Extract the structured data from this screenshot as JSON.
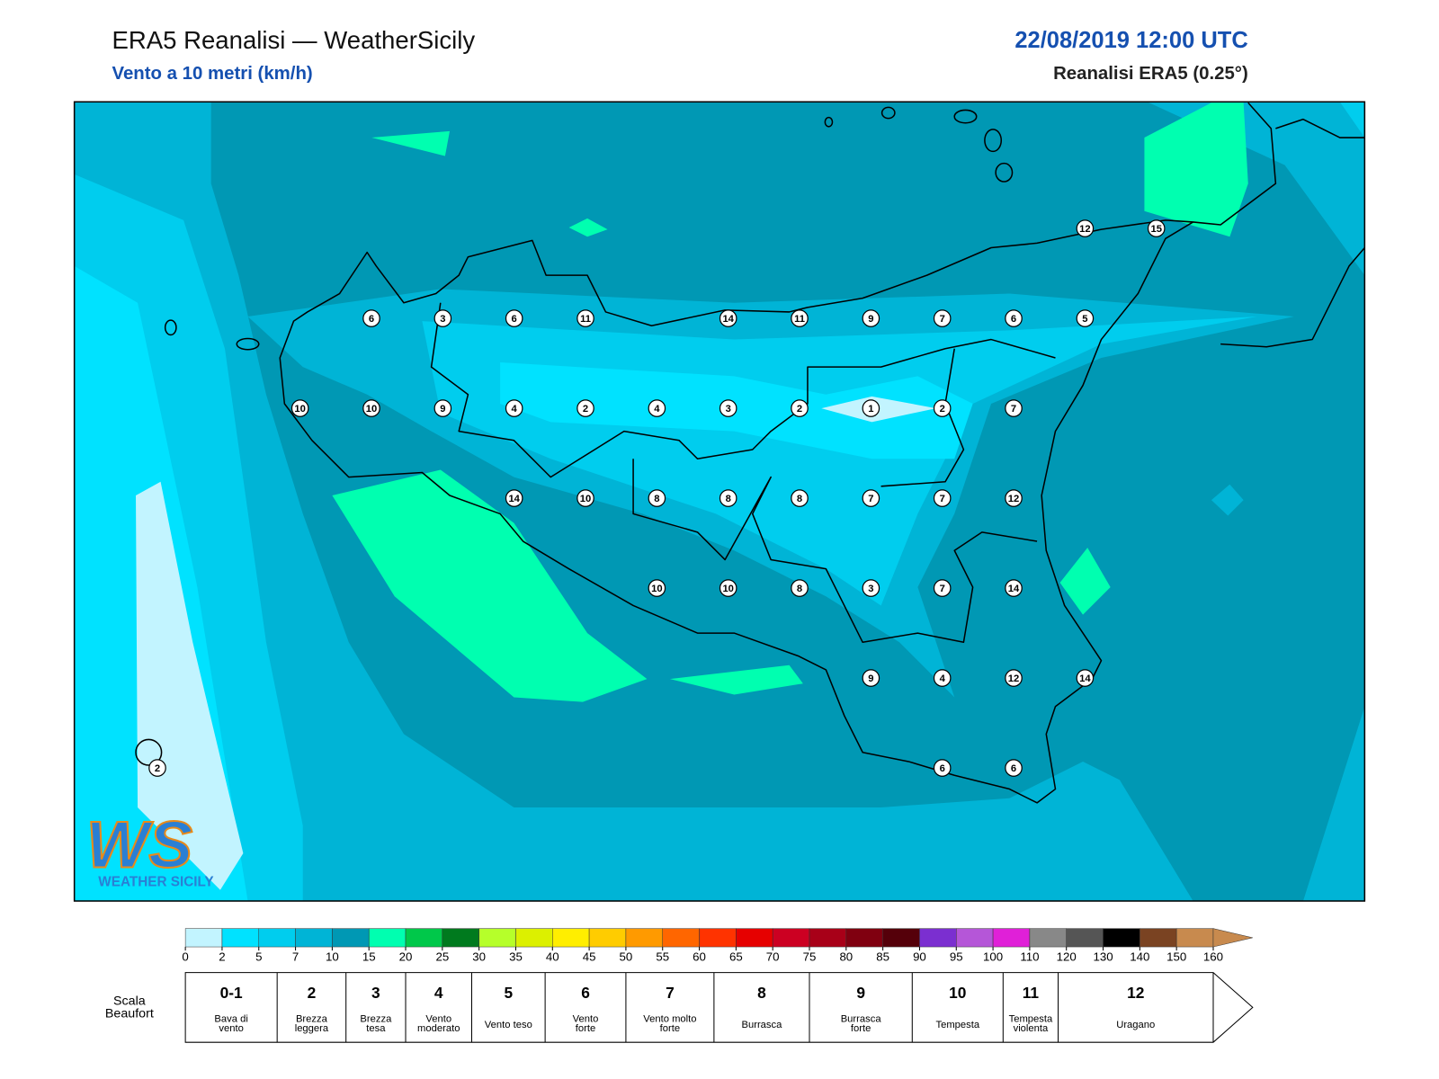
{
  "header": {
    "title": "ERA5 Reanalisi — WeatherSicily",
    "subtitle": "Vento a 10 metri (km/h)",
    "datetime": "22/08/2019 12:00 UTC",
    "source": "Reanalisi ERA5 (0.25°)"
  },
  "map": {
    "stations": [
      12,
      15,
      6,
      3,
      6,
      11,
      14,
      11,
      9,
      7,
      6,
      5,
      10,
      10,
      9,
      4,
      2,
      4,
      3,
      2,
      1,
      2,
      7,
      14,
      10,
      8,
      8,
      8,
      7,
      7,
      12,
      10,
      10,
      8,
      3,
      7,
      14,
      9,
      4,
      12,
      14,
      2,
      6,
      6
    ]
  },
  "logo": {
    "initials": "WS",
    "name": "WEATHER SICILY"
  },
  "colorbar": {
    "ticks": [
      0,
      2,
      5,
      7,
      10,
      15,
      20,
      25,
      30,
      35,
      40,
      45,
      50,
      55,
      60,
      65,
      70,
      75,
      80,
      85,
      90,
      95,
      100,
      110,
      120,
      130,
      140,
      150,
      160
    ],
    "colors": [
      "#c2f4ff",
      "#00e2ff",
      "#00cdee",
      "#00b4d6",
      "#0098b4",
      "#00ffb0",
      "#00c84a",
      "#007a1e",
      "#b6ff2a",
      "#dcf000",
      "#ffee00",
      "#ffcc00",
      "#ff9a00",
      "#ff6600",
      "#ff3300",
      "#e60000",
      "#cc0022",
      "#a80018",
      "#800010",
      "#55000a",
      "#7b2fd0",
      "#b556d8",
      "#e020d8",
      "#888888",
      "#555555",
      "#000000",
      "#7a4322",
      "#c88a4e"
    ]
  },
  "beaufort": {
    "label": [
      "Scala",
      "Beaufort"
    ],
    "grades": [
      {
        "grade": "0-1",
        "lines": [
          "Bava di",
          "vento"
        ]
      },
      {
        "grade": "2",
        "lines": [
          "Brezza",
          "leggera"
        ]
      },
      {
        "grade": "3",
        "lines": [
          "Brezza",
          "tesa"
        ]
      },
      {
        "grade": "4",
        "lines": [
          "Vento",
          "moderato"
        ]
      },
      {
        "grade": "5",
        "lines": [
          "Vento teso"
        ]
      },
      {
        "grade": "6",
        "lines": [
          "Vento",
          "forte"
        ]
      },
      {
        "grade": "7",
        "lines": [
          "Vento molto",
          "forte"
        ]
      },
      {
        "grade": "8",
        "lines": [
          "Burrasca"
        ]
      },
      {
        "grade": "9",
        "lines": [
          "Burrasca",
          "forte"
        ]
      },
      {
        "grade": "10",
        "lines": [
          "Tempesta"
        ]
      },
      {
        "grade": "11",
        "lines": [
          "Tempesta",
          "violenta"
        ]
      },
      {
        "grade": "12",
        "lines": [
          "Uragano"
        ]
      }
    ]
  }
}
